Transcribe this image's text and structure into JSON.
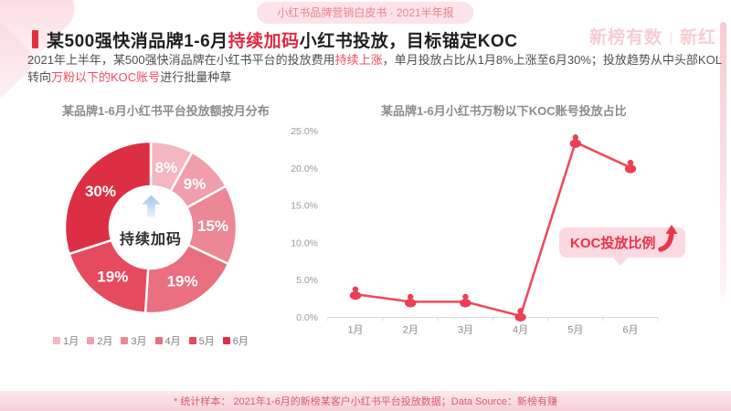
{
  "banner": {
    "label": "小红书品牌营销白皮书 · 2021半年报"
  },
  "watermark": {
    "left": "新榜有数",
    "separator": "|",
    "right": "新红"
  },
  "title": {
    "prefix": "某500强快消品牌1-6月",
    "highlight": "持续加码",
    "suffix": "小红书投放，目标锚定KOC"
  },
  "subtitle": {
    "parts": [
      {
        "text": "2021年上半年，某500强快消品牌在小红书平台的投放费用",
        "em": false
      },
      {
        "text": "持续上涨",
        "em": true
      },
      {
        "text": "，单月投放占比从1月8%上涨至6月30%；投放趋势从中头部KOL转向",
        "em": false
      },
      {
        "text": "万粉以下的KOC账号",
        "em": true
      },
      {
        "text": "进行批量种草",
        "em": false
      }
    ]
  },
  "chart_data": [
    {
      "type": "pie",
      "donut": true,
      "title": "某品牌1-6月小红书平台投放额按月分布",
      "categories": [
        "1月",
        "2月",
        "3月",
        "4月",
        "5月",
        "6月"
      ],
      "values": [
        8,
        9,
        15,
        19,
        19,
        30
      ],
      "unit": "%",
      "colors": [
        "#F4B6C0",
        "#F09EAB",
        "#EC8795",
        "#EA6F80",
        "#E64A5E",
        "#DC2F44"
      ],
      "center_label": "持续加码",
      "center_icon": "up-arrow-icon",
      "legend_position": "bottom"
    },
    {
      "type": "line",
      "title": "某品牌1-6月小红书万粉以下KOC账号投放占比",
      "x": [
        "1月",
        "2月",
        "3月",
        "4月",
        "5月",
        "6月"
      ],
      "values": [
        3.1,
        2.1,
        2.1,
        0.2,
        23.5,
        20.1
      ],
      "unit": "%",
      "ylim": [
        0,
        25
      ],
      "yticks": [
        "0.0%",
        "5.0%",
        "10.0%",
        "15.0%",
        "20.0%",
        "25.0%"
      ],
      "grid": false,
      "line_color": "#EE4A5C",
      "marker_color": "#EC3F54",
      "marker_icon": "person-icon",
      "annotation": "KOC投放比例",
      "annotation_icon": "trend-up-arrow-icon"
    }
  ],
  "footer": {
    "note": "* 统计样本： 2021年1-6月的新榜某客户小红书平台投放数据；Data Source：新榜有赚"
  }
}
